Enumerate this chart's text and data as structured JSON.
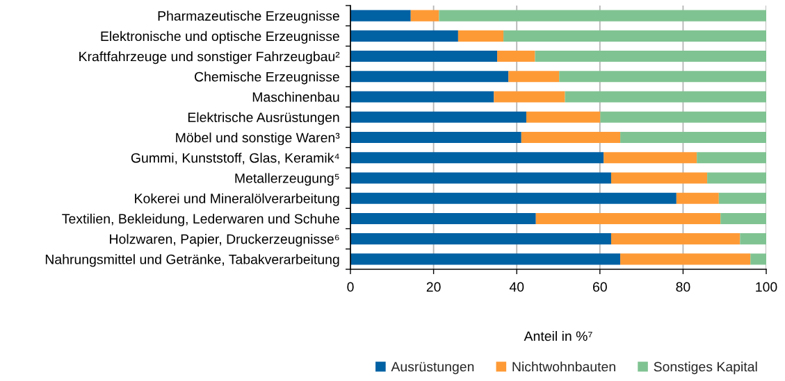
{
  "chart_data": {
    "type": "bar",
    "orientation": "horizontal",
    "stacked": true,
    "categories": [
      "Pharmazeutische Erzeugnisse",
      "Elektronische und optische Erzeugnisse",
      "Kraftfahrzeuge und sonstiger Fahrzeugbau²",
      "Chemische Erzeugnisse",
      "Maschinenbau",
      "Elektrische Ausrüstungen",
      "Möbel und sonstige Waren³",
      "Gummi, Kunststoff, Glas, Keramik⁴",
      "Metallerzeugung⁵",
      "Kokerei und Mineralölverarbeitung",
      "Textilien, Bekleidung, Lederwaren und Schuhe",
      "Holzwaren, Papier, Druckerzeugnisse⁶",
      "Nahrungsmittel und Getränke, Tabakverarbeitung"
    ],
    "series": [
      {
        "name": "Ausrüstungen",
        "color": "#0061a3",
        "values": [
          14.5,
          25.9,
          35.3,
          38.0,
          34.5,
          42.3,
          41.1,
          60.9,
          62.7,
          78.4,
          44.6,
          62.7,
          64.9
        ]
      },
      {
        "name": "Nichtwohnbauten",
        "color": "#fe9a36",
        "values": [
          6.8,
          10.9,
          9.1,
          12.2,
          17.1,
          17.8,
          23.8,
          22.4,
          23.1,
          10.2,
          44.4,
          31.0,
          31.3
        ]
      },
      {
        "name": "Sonstiges Kapital",
        "color": "#80c392",
        "values": [
          78.7,
          63.2,
          55.6,
          49.8,
          48.4,
          39.9,
          35.1,
          16.7,
          14.2,
          11.4,
          11.0,
          6.3,
          3.8
        ]
      }
    ],
    "xlim": [
      0,
      100
    ],
    "xticks": [
      0,
      20,
      40,
      60,
      80,
      100
    ],
    "xlabel": "Anteil in %⁷",
    "grid": "x",
    "legend": "bottom"
  }
}
